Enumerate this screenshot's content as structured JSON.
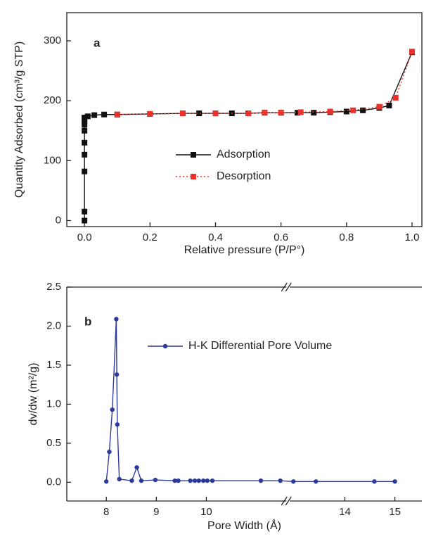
{
  "chart_data": [
    {
      "type": "line",
      "label": "a",
      "x_label": "Relative pressure (P/P°)",
      "y_label": "Quantity Adsorbed (cm³/g STP)",
      "xlim": [
        -0.054,
        1.03
      ],
      "ylim": [
        -10,
        347
      ],
      "xticks": [
        {
          "value": 0,
          "label": "0.0"
        },
        {
          "value": 0.2,
          "label": "0.2"
        },
        {
          "value": 0.4,
          "label": "0.4"
        },
        {
          "value": 0.6,
          "label": "0.6"
        },
        {
          "value": 0.8,
          "label": "0.8"
        },
        {
          "value": 1,
          "label": "1.0"
        }
      ],
      "yticks": [
        0,
        100,
        200,
        300
      ],
      "legend": "center",
      "series": [
        {
          "name": "Adsorption",
          "color": "#111111",
          "marker": "square",
          "dash": false,
          "x": [
            0,
            0,
            0,
            0,
            0,
            0,
            0,
            0,
            0,
            0,
            0.01,
            0.03,
            0.06,
            0.1,
            0.2,
            0.3,
            0.35,
            0.4,
            0.45,
            0.5,
            0.55,
            0.6,
            0.65,
            0.7,
            0.75,
            0.8,
            0.85,
            0.9,
            0.93,
            1.0
          ],
          "values": [
            0,
            15,
            82,
            110,
            130,
            150,
            160,
            165,
            170,
            172,
            174,
            176,
            177,
            177,
            178,
            179,
            179,
            179,
            179,
            179,
            180,
            180,
            180,
            180,
            181,
            182,
            184,
            188,
            192,
            281
          ]
        },
        {
          "name": "Desorption",
          "color": "#e8322b",
          "marker": "square",
          "dash": true,
          "x": [
            1.0,
            0.95,
            0.9,
            0.82,
            0.75,
            0.66,
            0.6,
            0.55,
            0.5,
            0.4,
            0.3,
            0.2,
            0.1
          ],
          "values": [
            282,
            205,
            190,
            184,
            182,
            181,
            180,
            180,
            179,
            179,
            179,
            178,
            177
          ]
        }
      ]
    },
    {
      "type": "line",
      "label": "b",
      "x_label": "Pore Width (Å)",
      "y_label": "dv/dw (m²/g)",
      "xlim": [
        7.21,
        15.54
      ],
      "xbreak": [
        11.6,
        12.9
      ],
      "ylim": [
        -0.24,
        2.5
      ],
      "xticks": [
        8,
        9,
        10,
        14,
        15
      ],
      "yticks": [
        {
          "value": 0,
          "label": "0.0"
        },
        {
          "value": 0.5,
          "label": "0.5"
        },
        {
          "value": 1,
          "label": "1.0"
        },
        {
          "value": 1.5,
          "label": "1.5"
        },
        {
          "value": 2,
          "label": "2.0"
        },
        {
          "value": 2.5,
          "label": "2.5"
        }
      ],
      "legend": "upper right",
      "series": [
        {
          "name": "H-K Differential Pore Volume",
          "color": "#2b3a9c",
          "marker": "circle",
          "dash": false,
          "x": [
            8.0,
            8.06,
            8.12,
            8.2,
            8.21,
            8.22,
            8.26,
            8.51,
            8.61,
            8.7,
            8.98,
            9.37,
            9.44,
            9.68,
            9.77,
            9.85,
            9.94,
            10.02,
            10.12,
            11.09,
            11.48,
            12.97,
            13.42,
            14.59,
            15.0
          ],
          "values": [
            0.01,
            0.39,
            0.93,
            2.09,
            1.38,
            0.74,
            0.04,
            0.02,
            0.19,
            0.02,
            0.03,
            0.02,
            0.02,
            0.02,
            0.02,
            0.02,
            0.02,
            0.02,
            0.02,
            0.02,
            0.02,
            0.01,
            0.01,
            0.01,
            0.01
          ]
        }
      ]
    }
  ]
}
